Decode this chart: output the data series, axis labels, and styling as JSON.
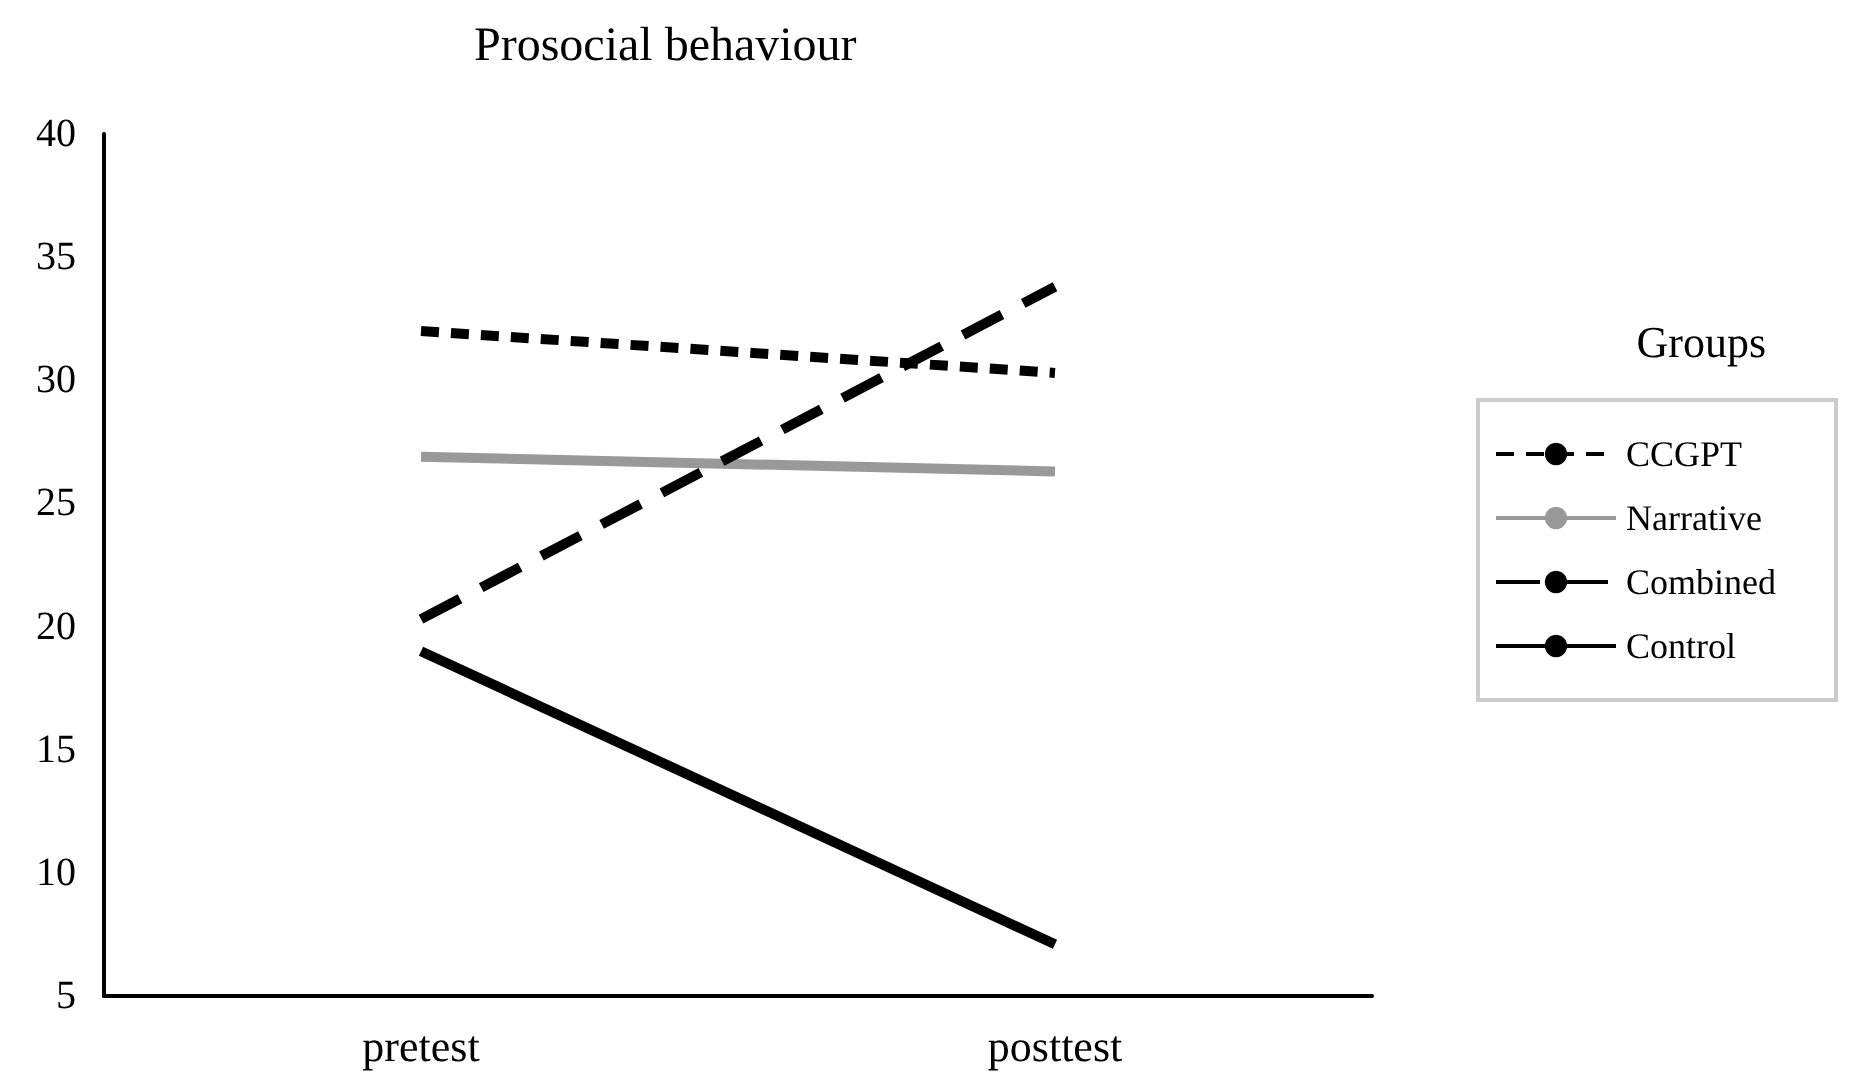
{
  "chart_data": {
    "type": "line",
    "title": "Prosocial behaviour",
    "legend_title": "Groups",
    "categories": [
      "pretest",
      "posttest"
    ],
    "series": [
      {
        "name": "CCGPT",
        "color": "#000000",
        "line_style": "dotted",
        "values": [
          32.0,
          30.3
        ]
      },
      {
        "name": "Narrative",
        "color": "#999999",
        "line_style": "solid",
        "values": [
          26.9,
          26.3
        ]
      },
      {
        "name": "Combined",
        "color": "#000000",
        "line_style": "dashed",
        "values": [
          20.3,
          33.8
        ]
      },
      {
        "name": "Control",
        "color": "#000000",
        "line_style": "solid",
        "values": [
          19.0,
          7.1
        ]
      }
    ],
    "ylim": [
      5,
      40
    ],
    "yticks": [
      5,
      10,
      15,
      20,
      25,
      30,
      35,
      40
    ],
    "grid": false,
    "legend": "right",
    "marker": "none"
  }
}
